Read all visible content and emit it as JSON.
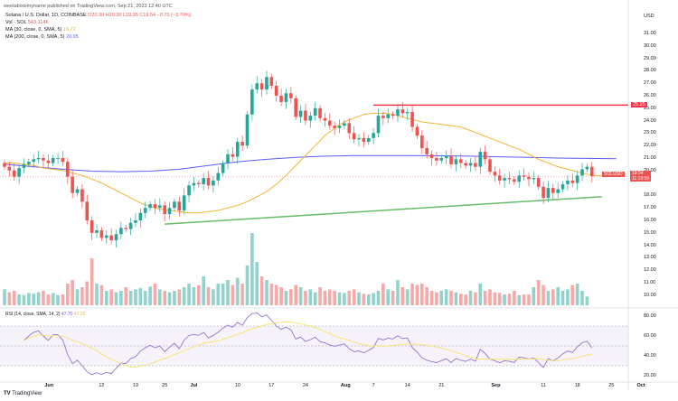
{
  "header": {
    "publisher": "weetabixismyname published on TradingView.com, Sep 21, 2023 12:40 UTC"
  },
  "legend": {
    "symbol": "Solana / U.S. Dollar, 1D, COINBASE",
    "open": "O20.30",
    "high": "H20.30",
    "low": "L19.35",
    "close": "C19.54",
    "change": "−0.75 (−3.70%)",
    "vol_label": "Vol · SOL",
    "vol_value": "543.114K",
    "ma30_label": "MA (30, close, 0, SMA, 5)",
    "ma30_value": "19.72",
    "ma200_label": "MA (200, close, 0, SMA, 5)",
    "ma200_value": "20.95",
    "rsi_label": "RSI (14, close, SMA, 14, 2)",
    "rsi_value": "47.70",
    "rsi_ma_value": "42.02"
  },
  "price_axis": {
    "currency": "USD",
    "ticks": [
      "31.00",
      "30.00",
      "29.00",
      "28.00",
      "27.00",
      "26.00",
      "25.00",
      "24.00",
      "23.00",
      "22.00",
      "21.00",
      "20.00",
      "18.00",
      "17.00",
      "16.00",
      "15.00",
      "14.00",
      "13.00",
      "12.00",
      "11.00",
      "10.00"
    ],
    "resistance_label": "25.25",
    "symbol_tag": "SOLUSD",
    "last_price": "19.54",
    "countdown": "11:19:59"
  },
  "rsi_axis": {
    "ticks": [
      "80.00",
      "60.00",
      "40.00",
      "20.00"
    ]
  },
  "time_axis": {
    "labels": [
      [
        "Jun",
        "2023-06-01"
      ],
      [
        "12",
        "2023-06-12"
      ],
      [
        "19",
        "2023-06-19"
      ],
      [
        "25",
        "2023-06-25"
      ],
      [
        "Jul",
        "2023-07-01"
      ],
      [
        "10",
        "2023-07-10"
      ],
      [
        "17",
        "2023-07-17"
      ],
      [
        "24",
        "2023-07-24"
      ],
      [
        "Aug",
        "2023-08-01"
      ],
      [
        "7",
        "2023-08-07"
      ],
      [
        "14",
        "2023-08-14"
      ],
      [
        "21",
        "2023-08-21"
      ],
      [
        "Sep",
        "2023-09-01"
      ],
      [
        "11",
        "2023-09-11"
      ],
      [
        "18",
        "2023-09-18"
      ],
      [
        "25",
        "2023-09-25"
      ],
      [
        "Oct",
        "2023-10-01"
      ]
    ]
  },
  "footer": {
    "logo": "TradingView"
  },
  "colors": {
    "up": "#26a69a",
    "down": "#ef5350",
    "ma30": "#f5b335",
    "ma200": "#5b5bff",
    "rsi": "#9575cd",
    "rsi_ma": "#f7e26b",
    "resistance": "#f23645",
    "support": "#66bb6a"
  },
  "chart_data": {
    "type": "candlestick",
    "start_date": "2023-05-23",
    "close": [
      20.3,
      20.0,
      19.5,
      20.2,
      20.5,
      20.7,
      20.9,
      21.0,
      20.8,
      20.6,
      21.0,
      21.0,
      20.7,
      19.5,
      18.2,
      18.5,
      17.5,
      16.0,
      15.0,
      15.2,
      14.6,
      14.8,
      14.4,
      14.9,
      15.4,
      15.3,
      15.8,
      16.0,
      16.6,
      17.0,
      17.3,
      17.0,
      17.2,
      16.5,
      17.0,
      17.5,
      16.8,
      18.0,
      18.8,
      19.0,
      18.9,
      19.4,
      18.8,
      19.2,
      19.8,
      20.6,
      21.3,
      21.1,
      22.3,
      22.0,
      24.5,
      26.5,
      27.0,
      26.5,
      27.5,
      26.8,
      26.0,
      25.5,
      26.2,
      25.8,
      24.3,
      24.8,
      24.0,
      24.4,
      25.0,
      24.2,
      24.0,
      23.6,
      23.4,
      23.6,
      23.8,
      23.0,
      22.5,
      22.6,
      22.3,
      22.6,
      23.0,
      24.4,
      24.2,
      24.5,
      24.4,
      24.9,
      24.6,
      24.7,
      23.5,
      22.8,
      21.8,
      21.3,
      21.0,
      20.8,
      21.0,
      21.2,
      20.5,
      20.9,
      20.6,
      20.4,
      20.6,
      20.3,
      21.5,
      20.9,
      19.9,
      19.6,
      19.2,
      19.4,
      19.3,
      19.1,
      19.6,
      19.5,
      19.3,
      19.4,
      18.7,
      17.8,
      18.6,
      18.2,
      18.5,
      18.9,
      19.2,
      19.0,
      19.6,
      20.1,
      20.3,
      19.54
    ],
    "volume_relative": [
      0.22,
      0.18,
      0.2,
      0.15,
      0.14,
      0.17,
      0.16,
      0.18,
      0.2,
      0.15,
      0.17,
      0.14,
      0.15,
      0.3,
      0.35,
      0.22,
      0.25,
      0.33,
      0.65,
      0.3,
      0.28,
      0.2,
      0.22,
      0.18,
      0.2,
      0.25,
      0.2,
      0.22,
      0.24,
      0.2,
      0.26,
      0.3,
      0.22,
      0.2,
      0.18,
      0.2,
      0.22,
      0.25,
      0.3,
      0.25,
      0.28,
      0.4,
      0.25,
      0.22,
      0.3,
      0.3,
      0.35,
      0.28,
      0.38,
      0.3,
      0.55,
      1.0,
      0.6,
      0.4,
      0.35,
      0.3,
      0.28,
      0.25,
      0.2,
      0.22,
      0.28,
      0.25,
      0.2,
      0.22,
      0.18,
      0.25,
      0.2,
      0.22,
      0.2,
      0.18,
      0.17,
      0.2,
      0.22,
      0.18,
      0.16,
      0.15,
      0.17,
      0.2,
      0.3,
      0.22,
      0.2,
      0.35,
      0.25,
      0.22,
      0.3,
      0.28,
      0.3,
      0.25,
      0.2,
      0.18,
      0.2,
      0.22,
      0.2,
      0.18,
      0.16,
      0.15,
      0.2,
      0.18,
      0.3,
      0.2,
      0.22,
      0.18,
      0.17,
      0.15,
      0.16,
      0.2,
      0.14,
      0.15,
      0.15,
      0.25,
      0.35,
      0.28,
      0.2,
      0.22,
      0.25,
      0.2,
      0.22,
      0.28,
      0.3,
      0.2,
      0.12
    ],
    "ma30": [
      20.6,
      20.6,
      20.5,
      20.4,
      20.2,
      20.1,
      20.0,
      19.8,
      19.6,
      19.3,
      19.0,
      18.6,
      18.2,
      17.8,
      17.4,
      17.1,
      16.9,
      16.8,
      16.7,
      16.6,
      16.6,
      16.7,
      16.8,
      17.0,
      17.2,
      17.5,
      17.9,
      18.3,
      18.9,
      19.6,
      20.4,
      21.2,
      22.0,
      22.8,
      23.4,
      23.9,
      24.2,
      24.5,
      24.6,
      24.6,
      24.5,
      24.3,
      24.1,
      23.9,
      23.8,
      23.7,
      23.6,
      23.5,
      23.2,
      22.9,
      22.6,
      22.3,
      22.0,
      21.7,
      21.3,
      20.9,
      20.6,
      20.3,
      20.1,
      19.9,
      19.7,
      19.6,
      19.55,
      19.6,
      19.72
    ],
    "ma30_dates_step": 2,
    "ma200": [
      20.5,
      20.3,
      20.1,
      19.95,
      19.9,
      19.95,
      20.1,
      20.4,
      20.7,
      20.9,
      21.05,
      21.15,
      21.2,
      21.2,
      21.2,
      21.18,
      21.15,
      21.1,
      21.05,
      21.0,
      20.97,
      20.95
    ],
    "ma200_dates_step": 6,
    "resistance": {
      "value": 25.25,
      "from": "2023-08-07"
    },
    "support": {
      "from": [
        "2023-06-25",
        15.7
      ],
      "to": [
        "2023-09-23",
        17.9
      ]
    },
    "price_range": [
      9.3,
      32.2
    ],
    "rsi_range": [
      15,
      85
    ],
    "rsi_levels": [
      70,
      50,
      30
    ]
  }
}
